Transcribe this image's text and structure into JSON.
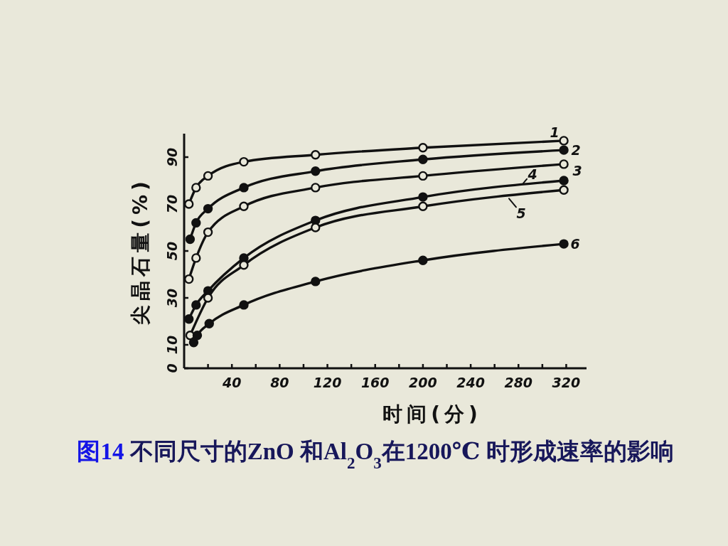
{
  "chart_data": {
    "type": "line",
    "title": "图14  不同尺寸的ZnO 和Al$_{2}$O$_{3}$在1200℃ 时形成速率的影响",
    "xlabel": "时间(分)",
    "ylabel": "尖晶石量(%)",
    "xlim": [
      0,
      337
    ],
    "ylim": [
      0,
      100
    ],
    "xticks": [
      {
        "value": 20,
        "label": null
      },
      40,
      {
        "value": 60,
        "label": null
      },
      80,
      {
        "value": 100,
        "label": null
      },
      120,
      {
        "value": 140,
        "label": null
      },
      160,
      {
        "value": 180,
        "label": null
      },
      200,
      {
        "value": 220,
        "label": null
      },
      240,
      {
        "value": 260,
        "label": null
      },
      280,
      {
        "value": 300,
        "label": null
      },
      320
    ],
    "yticks": [
      0,
      10,
      30,
      50,
      70,
      90
    ],
    "marker": "circle",
    "line_style": "solid",
    "series": [
      {
        "name": "1",
        "color": "#111111",
        "x": [
          4,
          10,
          20,
          50,
          110,
          200,
          318
        ],
        "values": [
          70,
          77,
          82,
          88,
          91,
          94,
          97
        ]
      },
      {
        "name": "2",
        "color": "#111111",
        "x": [
          5,
          10,
          20,
          50,
          110,
          200,
          318
        ],
        "values": [
          55,
          62,
          68,
          77,
          84,
          89,
          93
        ]
      },
      {
        "name": "3",
        "color": "#111111",
        "x": [
          4,
          10,
          20,
          50,
          110,
          200,
          318
        ],
        "values": [
          38,
          47,
          58,
          69,
          77,
          82,
          87
        ]
      },
      {
        "name": "4",
        "color": "#111111",
        "x": [
          4,
          10,
          20,
          50,
          110,
          200,
          318
        ],
        "values": [
          21,
          27,
          33,
          47,
          63,
          73,
          80
        ]
      },
      {
        "name": "5",
        "color": "#111111",
        "x": [
          5,
          20,
          50,
          110,
          200,
          318
        ],
        "values": [
          14,
          30,
          44,
          60,
          69,
          76
        ]
      },
      {
        "name": "6",
        "color": "#111111",
        "x": [
          8,
          11,
          21,
          50,
          110,
          200,
          318
        ],
        "values": [
          11,
          14,
          19,
          27,
          37,
          46,
          53
        ]
      }
    ]
  }
}
